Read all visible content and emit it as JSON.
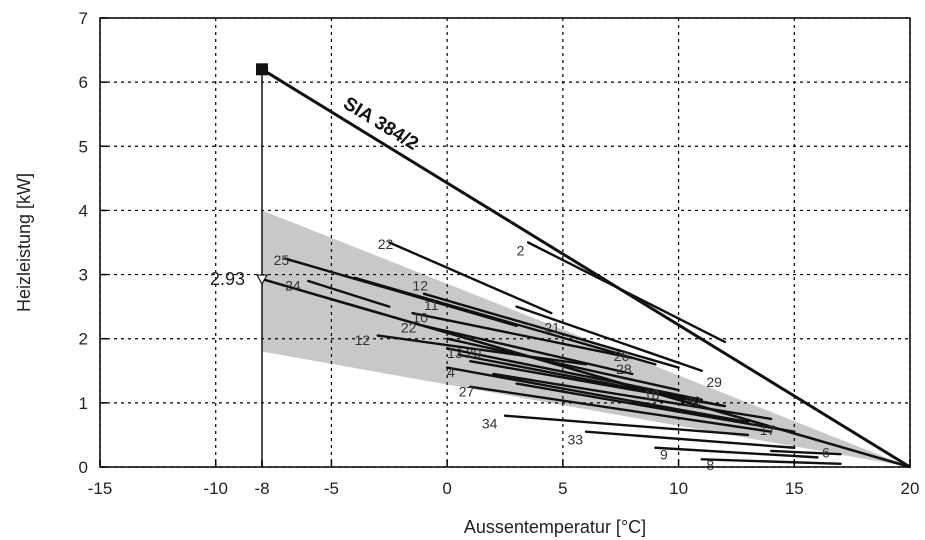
{
  "chart_data": {
    "type": "line",
    "title": "",
    "xlabel": "Aussentemperatur [°C]",
    "ylabel": "Heizleistung [kW]",
    "xlim": [
      -15,
      20
    ],
    "ylim": [
      0,
      7
    ],
    "x_ticks": [
      {
        "value": -15,
        "label": "-15"
      },
      {
        "value": -10,
        "label": "-10"
      },
      {
        "value": -8,
        "label": "-8"
      },
      {
        "value": -5,
        "label": "-5"
      },
      {
        "value": 0,
        "label": "0"
      },
      {
        "value": 5,
        "label": "5"
      },
      {
        "value": 10,
        "label": "10"
      },
      {
        "value": 15,
        "label": "15"
      },
      {
        "value": 20,
        "label": "20"
      }
    ],
    "y_ticks": [
      {
        "value": 0,
        "label": "0"
      },
      {
        "value": 1,
        "label": "1"
      },
      {
        "value": 2,
        "label": "2"
      },
      {
        "value": 3,
        "label": "3"
      },
      {
        "value": 4,
        "label": "4"
      },
      {
        "value": 5,
        "label": "5"
      },
      {
        "value": 6,
        "label": "6"
      },
      {
        "value": 7,
        "label": "7"
      }
    ],
    "grid": true,
    "band": {
      "x_start": -8,
      "upper": [
        [
          -8,
          4.0
        ],
        [
          20,
          0
        ]
      ],
      "lower": [
        [
          -8,
          1.8
        ],
        [
          20,
          0
        ]
      ],
      "color": "#c8c8c8"
    },
    "reference_line": {
      "label": "SIA 384/2",
      "points": [
        [
          -8,
          6.2
        ],
        [
          20,
          0
        ]
      ],
      "marker_point": [
        -8,
        6.2
      ]
    },
    "mean_line": {
      "points": [
        [
          -8,
          2.93
        ],
        [
          20,
          0
        ]
      ],
      "marker_label": "2.93"
    },
    "series": [
      {
        "name": "2",
        "x": [
          3.5,
          12
        ],
        "y": [
          3.5,
          1.95
        ]
      },
      {
        "name": "22",
        "x": [
          -2.5,
          4.5
        ],
        "y": [
          3.5,
          2.4
        ]
      },
      {
        "name": "25",
        "x": [
          -7,
          3
        ],
        "y": [
          3.25,
          2.2
        ]
      },
      {
        "name": "24",
        "x": [
          -6,
          -2.5
        ],
        "y": [
          2.9,
          2.5
        ]
      },
      {
        "name": "12",
        "x": [
          -3,
          6
        ],
        "y": [
          2.05,
          1.6
        ]
      },
      {
        "name": "29",
        "x": [
          3,
          11
        ],
        "y": [
          2.5,
          1.5
        ]
      },
      {
        "name": "34",
        "x": [
          2.5,
          13
        ],
        "y": [
          0.8,
          0.5
        ]
      },
      {
        "name": "33",
        "x": [
          6,
          15
        ],
        "y": [
          0.55,
          0.3
        ]
      },
      {
        "name": "9",
        "x": [
          9,
          16
        ],
        "y": [
          0.3,
          0.15
        ]
      },
      {
        "name": "8",
        "x": [
          11,
          17
        ],
        "y": [
          0.12,
          0.05
        ]
      },
      {
        "name": "6",
        "x": [
          14,
          17
        ],
        "y": [
          0.25,
          0.2
        ]
      },
      {
        "name": "4",
        "x": [
          0,
          13
        ],
        "y": [
          1.55,
          0.7
        ]
      },
      {
        "name": "27",
        "x": [
          1,
          14
        ],
        "y": [
          1.25,
          0.55
        ]
      },
      {
        "name": "13",
        "x": [
          0.5,
          12
        ],
        "y": [
          1.75,
          0.95
        ]
      },
      {
        "name": "",
        "x": [
          -4,
          9
        ],
        "y": [
          2.95,
          1.6
        ]
      },
      {
        "name": "",
        "x": [
          -1,
          10
        ],
        "y": [
          2.7,
          1.55
        ]
      },
      {
        "name": "",
        "x": [
          -1.5,
          8
        ],
        "y": [
          2.4,
          1.7
        ]
      },
      {
        "name": "",
        "x": [
          -1,
          8
        ],
        "y": [
          2.2,
          1.45
        ]
      },
      {
        "name": "",
        "x": [
          0,
          10
        ],
        "y": [
          2.0,
          1.2
        ]
      },
      {
        "name": "",
        "x": [
          0,
          11
        ],
        "y": [
          1.85,
          1.05
        ]
      },
      {
        "name": "",
        "x": [
          1,
          12
        ],
        "y": [
          1.65,
          0.95
        ]
      },
      {
        "name": "",
        "x": [
          3,
          15
        ],
        "y": [
          1.3,
          0.55
        ]
      },
      {
        "name": "",
        "x": [
          2,
          14
        ],
        "y": [
          1.45,
          0.75
        ]
      }
    ],
    "labels": [
      {
        "text": "2",
        "x": 3.0,
        "y": 3.3
      },
      {
        "text": "22",
        "x": -3.0,
        "y": 3.4
      },
      {
        "text": "25",
        "x": -7.5,
        "y": 3.15
      },
      {
        "text": "24",
        "x": -7.0,
        "y": 2.75
      },
      {
        "text": "12",
        "x": -4.0,
        "y": 1.9
      },
      {
        "text": "4",
        "x": 0.0,
        "y": 1.4
      },
      {
        "text": "27",
        "x": 0.5,
        "y": 1.1
      },
      {
        "text": "34",
        "x": 1.5,
        "y": 0.6
      },
      {
        "text": "33",
        "x": 5.2,
        "y": 0.35
      },
      {
        "text": "9",
        "x": 9.2,
        "y": 0.12
      },
      {
        "text": "8",
        "x": 11.2,
        "y": -0.05
      },
      {
        "text": "6",
        "x": 16.2,
        "y": 0.15
      },
      {
        "text": "29",
        "x": 11.2,
        "y": 1.25
      },
      {
        "text": "13",
        "x": 0.0,
        "y": 1.7
      },
      {
        "text": "20",
        "x": 0.8,
        "y": 1.7
      },
      {
        "text": "12",
        "x": -1.5,
        "y": 2.75
      },
      {
        "text": "11",
        "x": -1.0,
        "y": 2.45
      },
      {
        "text": "10",
        "x": -1.5,
        "y": 2.25
      },
      {
        "text": "22",
        "x": -2.0,
        "y": 2.1
      },
      {
        "text": "21",
        "x": 4.2,
        "y": 2.1
      },
      {
        "text": "26",
        "x": 7.2,
        "y": 1.65
      },
      {
        "text": "28",
        "x": 7.3,
        "y": 1.45
      },
      {
        "text": "18",
        "x": 8.5,
        "y": 1.05
      },
      {
        "text": "30",
        "x": 10.3,
        "y": 0.95
      },
      {
        "text": "17",
        "x": 13.5,
        "y": 0.5
      }
    ]
  }
}
